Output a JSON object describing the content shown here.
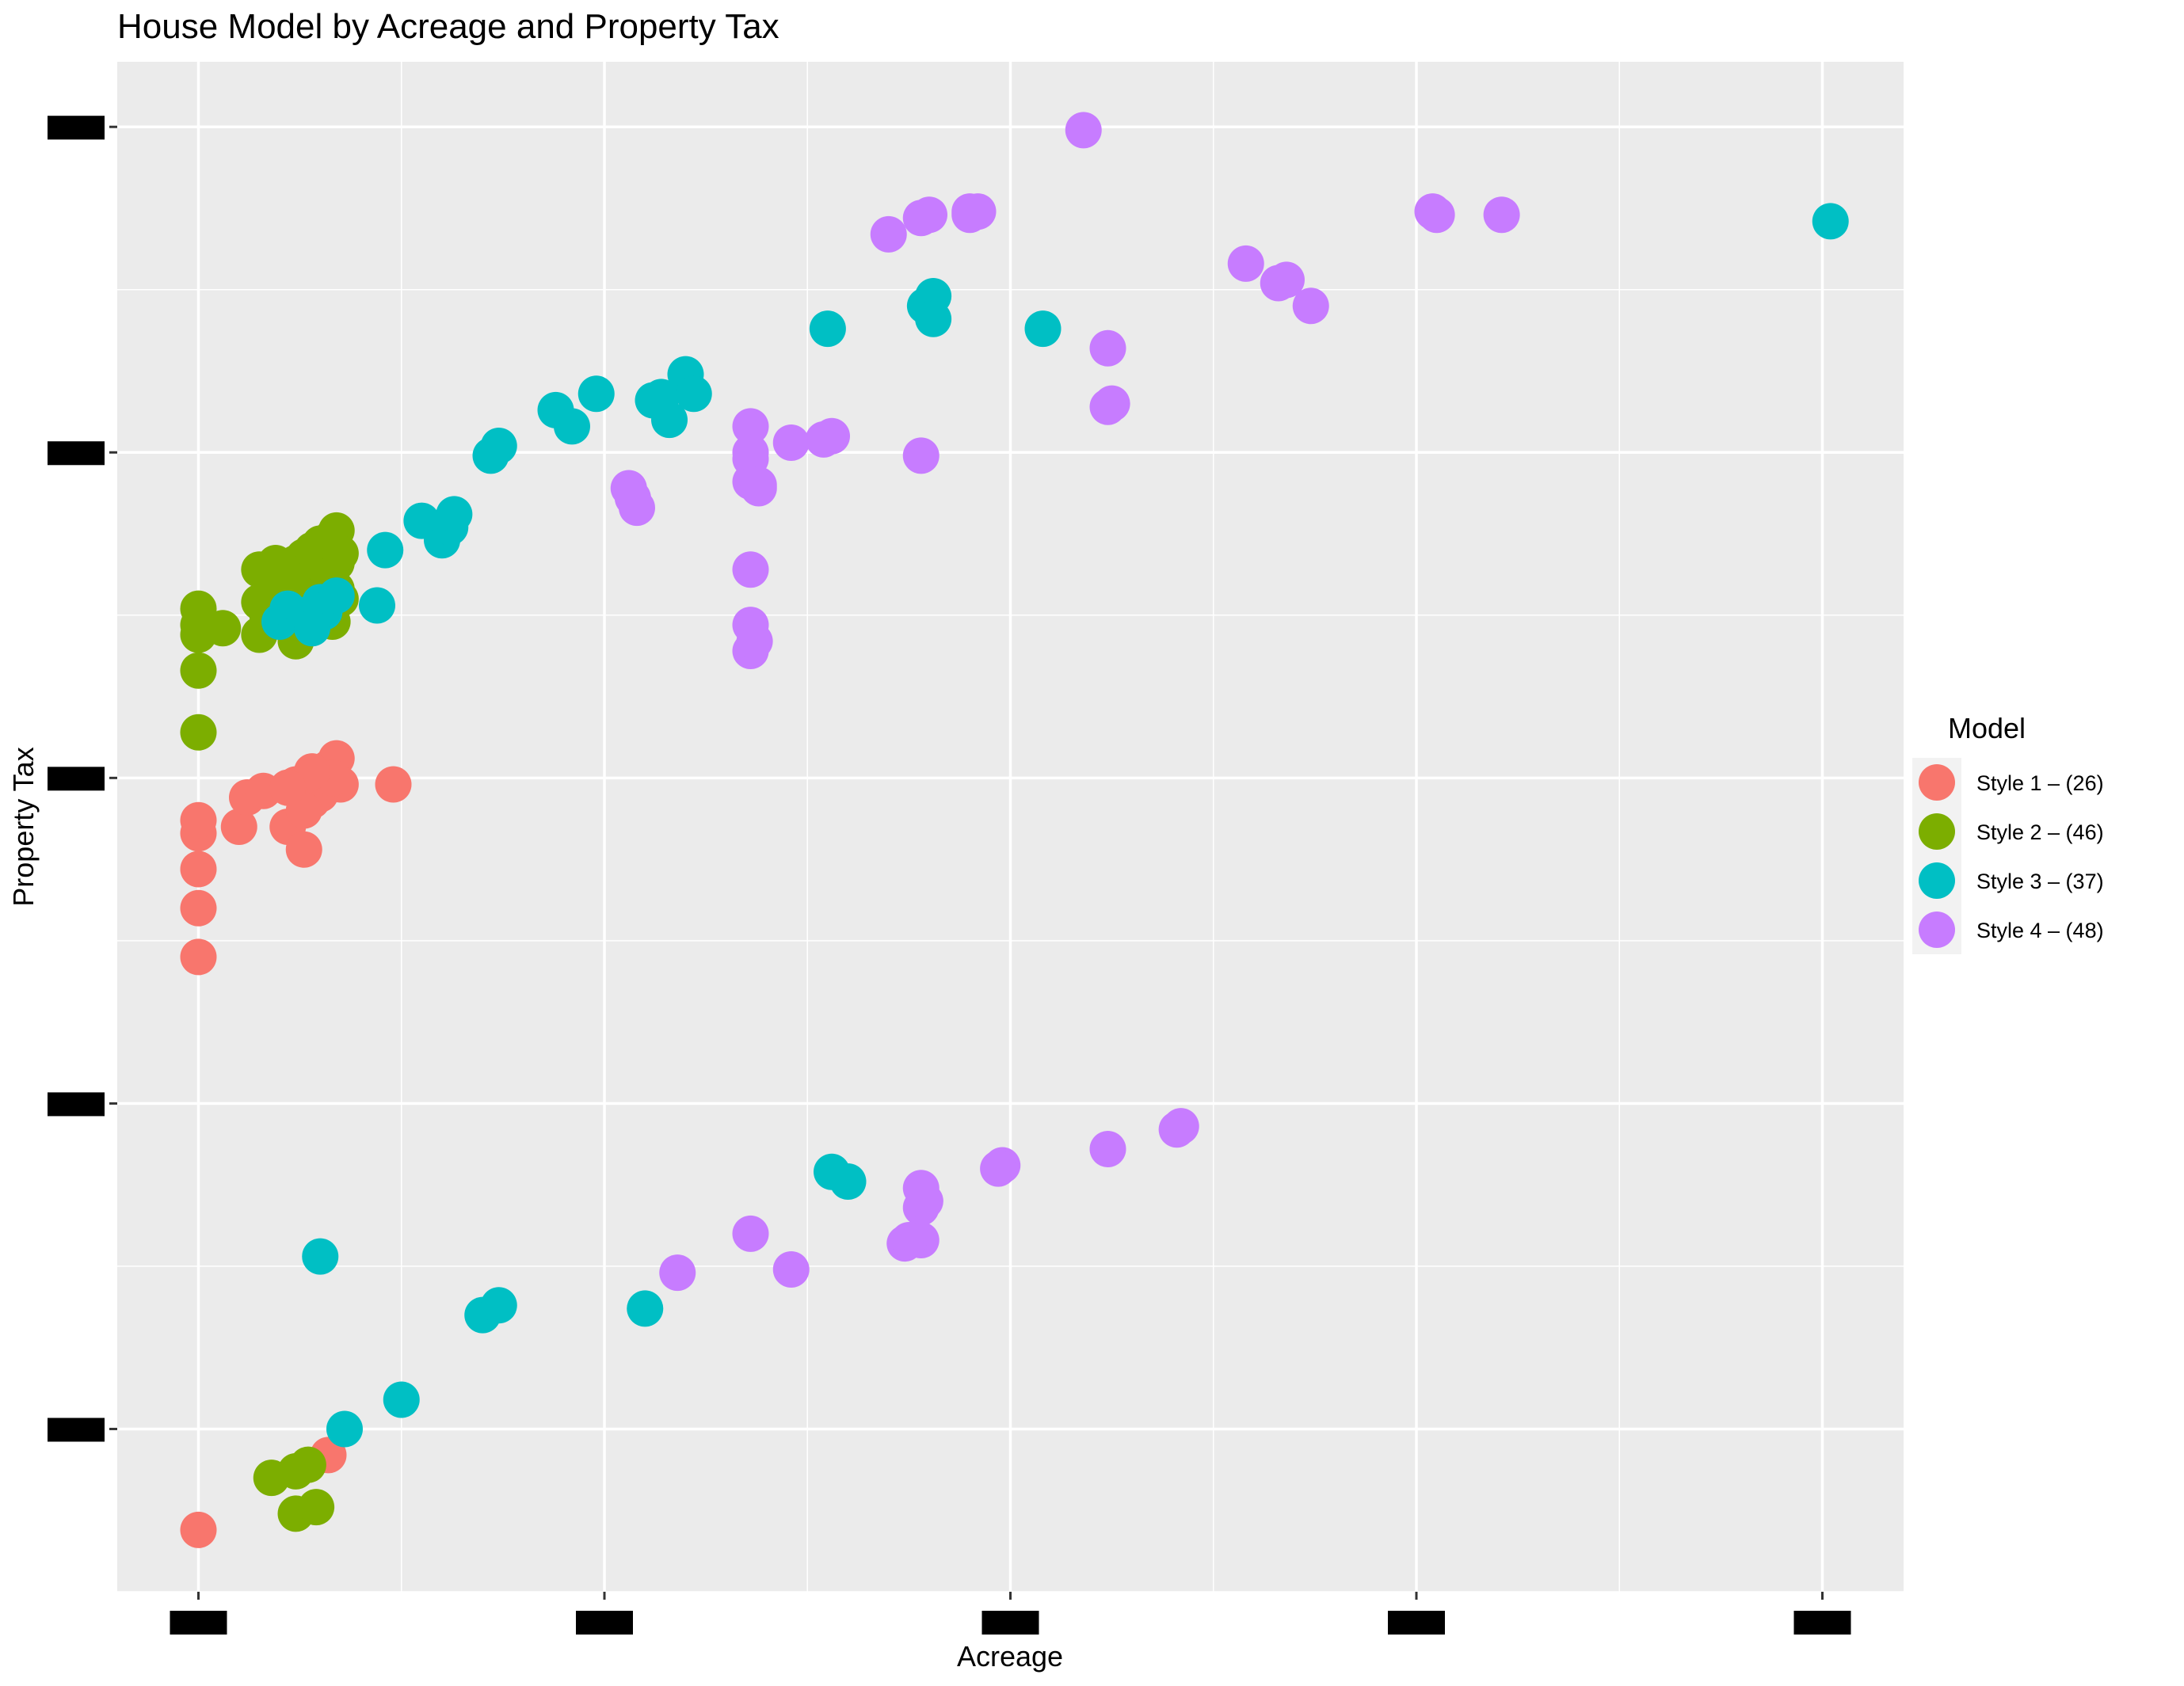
{
  "chart_data": {
    "type": "scatter",
    "title": "House Model by Acreage and Property Tax",
    "xlabel": "Acreage",
    "ylabel": "Property Tax",
    "x_ticks": [
      "",
      "",
      "",
      "",
      ""
    ],
    "y_ticks": [
      "",
      "",
      "",
      "",
      ""
    ],
    "xlim": [
      -0.2,
      4.2
    ],
    "ylim": [
      -0.5,
      4.2
    ],
    "grid": true,
    "legend": {
      "title": "Model",
      "placement": "right"
    },
    "series": [
      {
        "name": "Style 1 – (26)",
        "color": "#F8766D",
        "points": [
          [
            0.0,
            1.45
          ],
          [
            0.0,
            1.6
          ],
          [
            0.0,
            1.72
          ],
          [
            0.0,
            1.83
          ],
          [
            0.0,
            1.87
          ],
          [
            0.1,
            1.85
          ],
          [
            0.12,
            1.94
          ],
          [
            0.16,
            1.96
          ],
          [
            0.22,
            1.85
          ],
          [
            0.26,
            1.78
          ],
          [
            0.26,
            1.96
          ],
          [
            0.27,
            1.99
          ],
          [
            0.28,
            1.93
          ],
          [
            0.3,
            2.01
          ],
          [
            0.32,
            2.03
          ],
          [
            0.34,
            2.06
          ],
          [
            0.35,
            1.98
          ],
          [
            0.3,
            1.95
          ],
          [
            0.24,
            1.98
          ],
          [
            0.33,
            2.0
          ],
          [
            0.48,
            1.98
          ],
          [
            0.32,
            -0.08
          ],
          [
            0.0,
            -0.31
          ],
          [
            0.26,
            1.9
          ],
          [
            0.28,
            2.02
          ],
          [
            0.22,
            1.97
          ]
        ]
      },
      {
        "name": "Style 2 – (46)",
        "color": "#7CAE00",
        "points": [
          [
            0.0,
            2.14
          ],
          [
            0.0,
            2.33
          ],
          [
            0.0,
            2.44
          ],
          [
            0.0,
            2.47
          ],
          [
            0.0,
            2.52
          ],
          [
            0.06,
            2.46
          ],
          [
            0.15,
            2.44
          ],
          [
            0.15,
            2.54
          ],
          [
            0.15,
            2.64
          ],
          [
            0.18,
            2.56
          ],
          [
            0.2,
            2.58
          ],
          [
            0.2,
            2.64
          ],
          [
            0.22,
            2.49
          ],
          [
            0.22,
            2.6
          ],
          [
            0.24,
            2.42
          ],
          [
            0.24,
            2.66
          ],
          [
            0.26,
            2.58
          ],
          [
            0.26,
            2.68
          ],
          [
            0.28,
            2.62
          ],
          [
            0.28,
            2.7
          ],
          [
            0.3,
            2.52
          ],
          [
            0.3,
            2.64
          ],
          [
            0.3,
            2.72
          ],
          [
            0.32,
            2.6
          ],
          [
            0.32,
            2.68
          ],
          [
            0.33,
            2.74
          ],
          [
            0.34,
            2.58
          ],
          [
            0.34,
            2.66
          ],
          [
            0.34,
            2.76
          ],
          [
            0.35,
            2.55
          ],
          [
            0.35,
            2.69
          ],
          [
            0.25,
            2.47
          ],
          [
            0.27,
            2.52
          ],
          [
            0.29,
            2.56
          ],
          [
            0.31,
            2.5
          ],
          [
            0.33,
            2.48
          ],
          [
            0.23,
            2.6
          ],
          [
            0.21,
            2.52
          ],
          [
            0.19,
            2.66
          ],
          [
            0.17,
            2.5
          ],
          [
            0.18,
            -0.15
          ],
          [
            0.24,
            -0.13
          ],
          [
            0.27,
            -0.11
          ],
          [
            0.24,
            -0.26
          ],
          [
            0.29,
            -0.24
          ],
          [
            0.32,
            2.62
          ]
        ]
      },
      {
        "name": "Style 3 – (37)",
        "color": "#00BFC4",
        "points": [
          [
            0.2,
            2.48
          ],
          [
            0.22,
            2.52
          ],
          [
            0.26,
            2.5
          ],
          [
            0.3,
            2.54
          ],
          [
            0.31,
            2.51
          ],
          [
            0.44,
            2.53
          ],
          [
            0.46,
            2.7
          ],
          [
            0.55,
            2.79
          ],
          [
            0.6,
            2.73
          ],
          [
            0.62,
            2.77
          ],
          [
            0.63,
            2.81
          ],
          [
            0.72,
            2.99
          ],
          [
            0.74,
            3.02
          ],
          [
            0.88,
            3.13
          ],
          [
            0.92,
            3.08
          ],
          [
            0.98,
            3.18
          ],
          [
            1.12,
            3.16
          ],
          [
            1.14,
            3.17
          ],
          [
            1.16,
            3.1
          ],
          [
            1.2,
            3.24
          ],
          [
            1.22,
            3.18
          ],
          [
            1.55,
            3.38
          ],
          [
            1.79,
            3.45
          ],
          [
            1.81,
            3.48
          ],
          [
            1.81,
            3.41
          ],
          [
            2.08,
            3.38
          ],
          [
            4.02,
            3.71
          ],
          [
            1.56,
            0.79
          ],
          [
            1.6,
            0.76
          ],
          [
            0.3,
            0.53
          ],
          [
            0.7,
            0.35
          ],
          [
            0.74,
            0.38
          ],
          [
            1.1,
            0.37
          ],
          [
            0.5,
            0.09
          ],
          [
            0.36,
            0.0
          ],
          [
            0.34,
            2.56
          ],
          [
            0.28,
            2.46
          ]
        ]
      },
      {
        "name": "Style 4 – (48)",
        "color": "#C77CFF",
        "points": [
          [
            2.18,
            3.99
          ],
          [
            3.05,
            3.73
          ],
          [
            3.21,
            3.73
          ],
          [
            2.58,
            3.58
          ],
          [
            2.68,
            3.53
          ],
          [
            2.74,
            3.45
          ],
          [
            2.24,
            3.32
          ],
          [
            1.78,
            3.72
          ],
          [
            1.9,
            3.73
          ],
          [
            1.92,
            3.74
          ],
          [
            1.7,
            3.67
          ],
          [
            2.24,
            3.14
          ],
          [
            1.36,
            3.08
          ],
          [
            1.46,
            3.03
          ],
          [
            1.56,
            3.05
          ],
          [
            1.36,
            2.98
          ],
          [
            1.36,
            2.91
          ],
          [
            1.38,
            2.89
          ],
          [
            1.78,
            2.99
          ],
          [
            1.06,
            2.89
          ],
          [
            1.08,
            2.83
          ],
          [
            1.36,
            2.64
          ],
          [
            1.36,
            2.47
          ],
          [
            1.36,
            2.39
          ],
          [
            1.36,
            3.0
          ],
          [
            2.41,
            0.92
          ],
          [
            2.24,
            0.86
          ],
          [
            1.98,
            0.81
          ],
          [
            1.78,
            0.74
          ],
          [
            1.78,
            0.68
          ],
          [
            1.74,
            0.57
          ],
          [
            1.78,
            0.58
          ],
          [
            1.36,
            0.6
          ],
          [
            1.46,
            0.49
          ],
          [
            1.18,
            0.48
          ],
          [
            2.25,
            3.15
          ],
          [
            1.9,
            3.74
          ],
          [
            1.54,
            3.04
          ],
          [
            1.38,
            2.9
          ],
          [
            1.8,
            3.73
          ],
          [
            2.66,
            3.52
          ],
          [
            3.04,
            3.74
          ],
          [
            1.07,
            2.86
          ],
          [
            1.37,
            2.42
          ],
          [
            1.79,
            0.7
          ],
          [
            1.75,
            0.58
          ],
          [
            2.42,
            0.93
          ],
          [
            1.97,
            0.8
          ]
        ]
      }
    ]
  }
}
